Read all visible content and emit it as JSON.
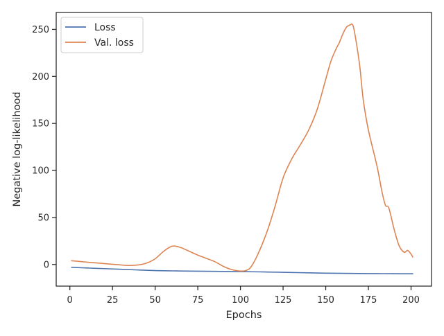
{
  "chart_data": {
    "type": "line",
    "title": "",
    "xlabel": "Epochs",
    "ylabel": "Negative log-likelihood",
    "xlim": [
      -8,
      212
    ],
    "ylim": [
      -23,
      268
    ],
    "xticks": [
      0,
      25,
      50,
      75,
      100,
      125,
      150,
      175,
      200
    ],
    "yticks": [
      0,
      50,
      100,
      150,
      200,
      250
    ],
    "grid": false,
    "legend_position": "top-left",
    "series": [
      {
        "name": "Loss",
        "color": "#4c72b0",
        "x": [
          1,
          10,
          20,
          30,
          40,
          50,
          60,
          70,
          80,
          90,
          100,
          110,
          120,
          130,
          140,
          150,
          160,
          170,
          180,
          190,
          201
        ],
        "y": [
          -3,
          -3.7,
          -4.4,
          -5.1,
          -5.8,
          -6.5,
          -6.8,
          -7.0,
          -7.2,
          -7.4,
          -7.6,
          -7.8,
          -8.1,
          -8.5,
          -8.9,
          -9.2,
          -9.4,
          -9.6,
          -9.7,
          -9.8,
          -9.9
        ]
      },
      {
        "name": "Val. loss",
        "color": "#dd8452",
        "x": [
          1,
          10,
          20,
          30,
          35,
          40,
          45,
          50,
          55,
          60,
          65,
          70,
          75,
          80,
          85,
          90,
          95,
          100,
          103,
          106,
          110,
          115,
          120,
          125,
          130,
          135,
          140,
          145,
          150,
          153,
          156,
          158,
          160,
          162,
          164,
          166,
          168,
          170,
          172,
          175,
          180,
          183,
          185,
          187,
          190,
          193,
          196,
          198,
          200,
          201
        ],
        "y": [
          4,
          2.5,
          1,
          -0.5,
          -1,
          -0.5,
          1.5,
          6,
          14,
          19.5,
          18,
          14,
          10,
          6.5,
          3,
          -2,
          -5.5,
          -7,
          -6.5,
          -3,
          10,
          32,
          60,
          92,
          112,
          127,
          143,
          165,
          197,
          216,
          229,
          236,
          245,
          252,
          254.5,
          254,
          235,
          210,
          175,
          143,
          105,
          77,
          63,
          60,
          38,
          20,
          13,
          15,
          11,
          8
        ]
      }
    ]
  }
}
